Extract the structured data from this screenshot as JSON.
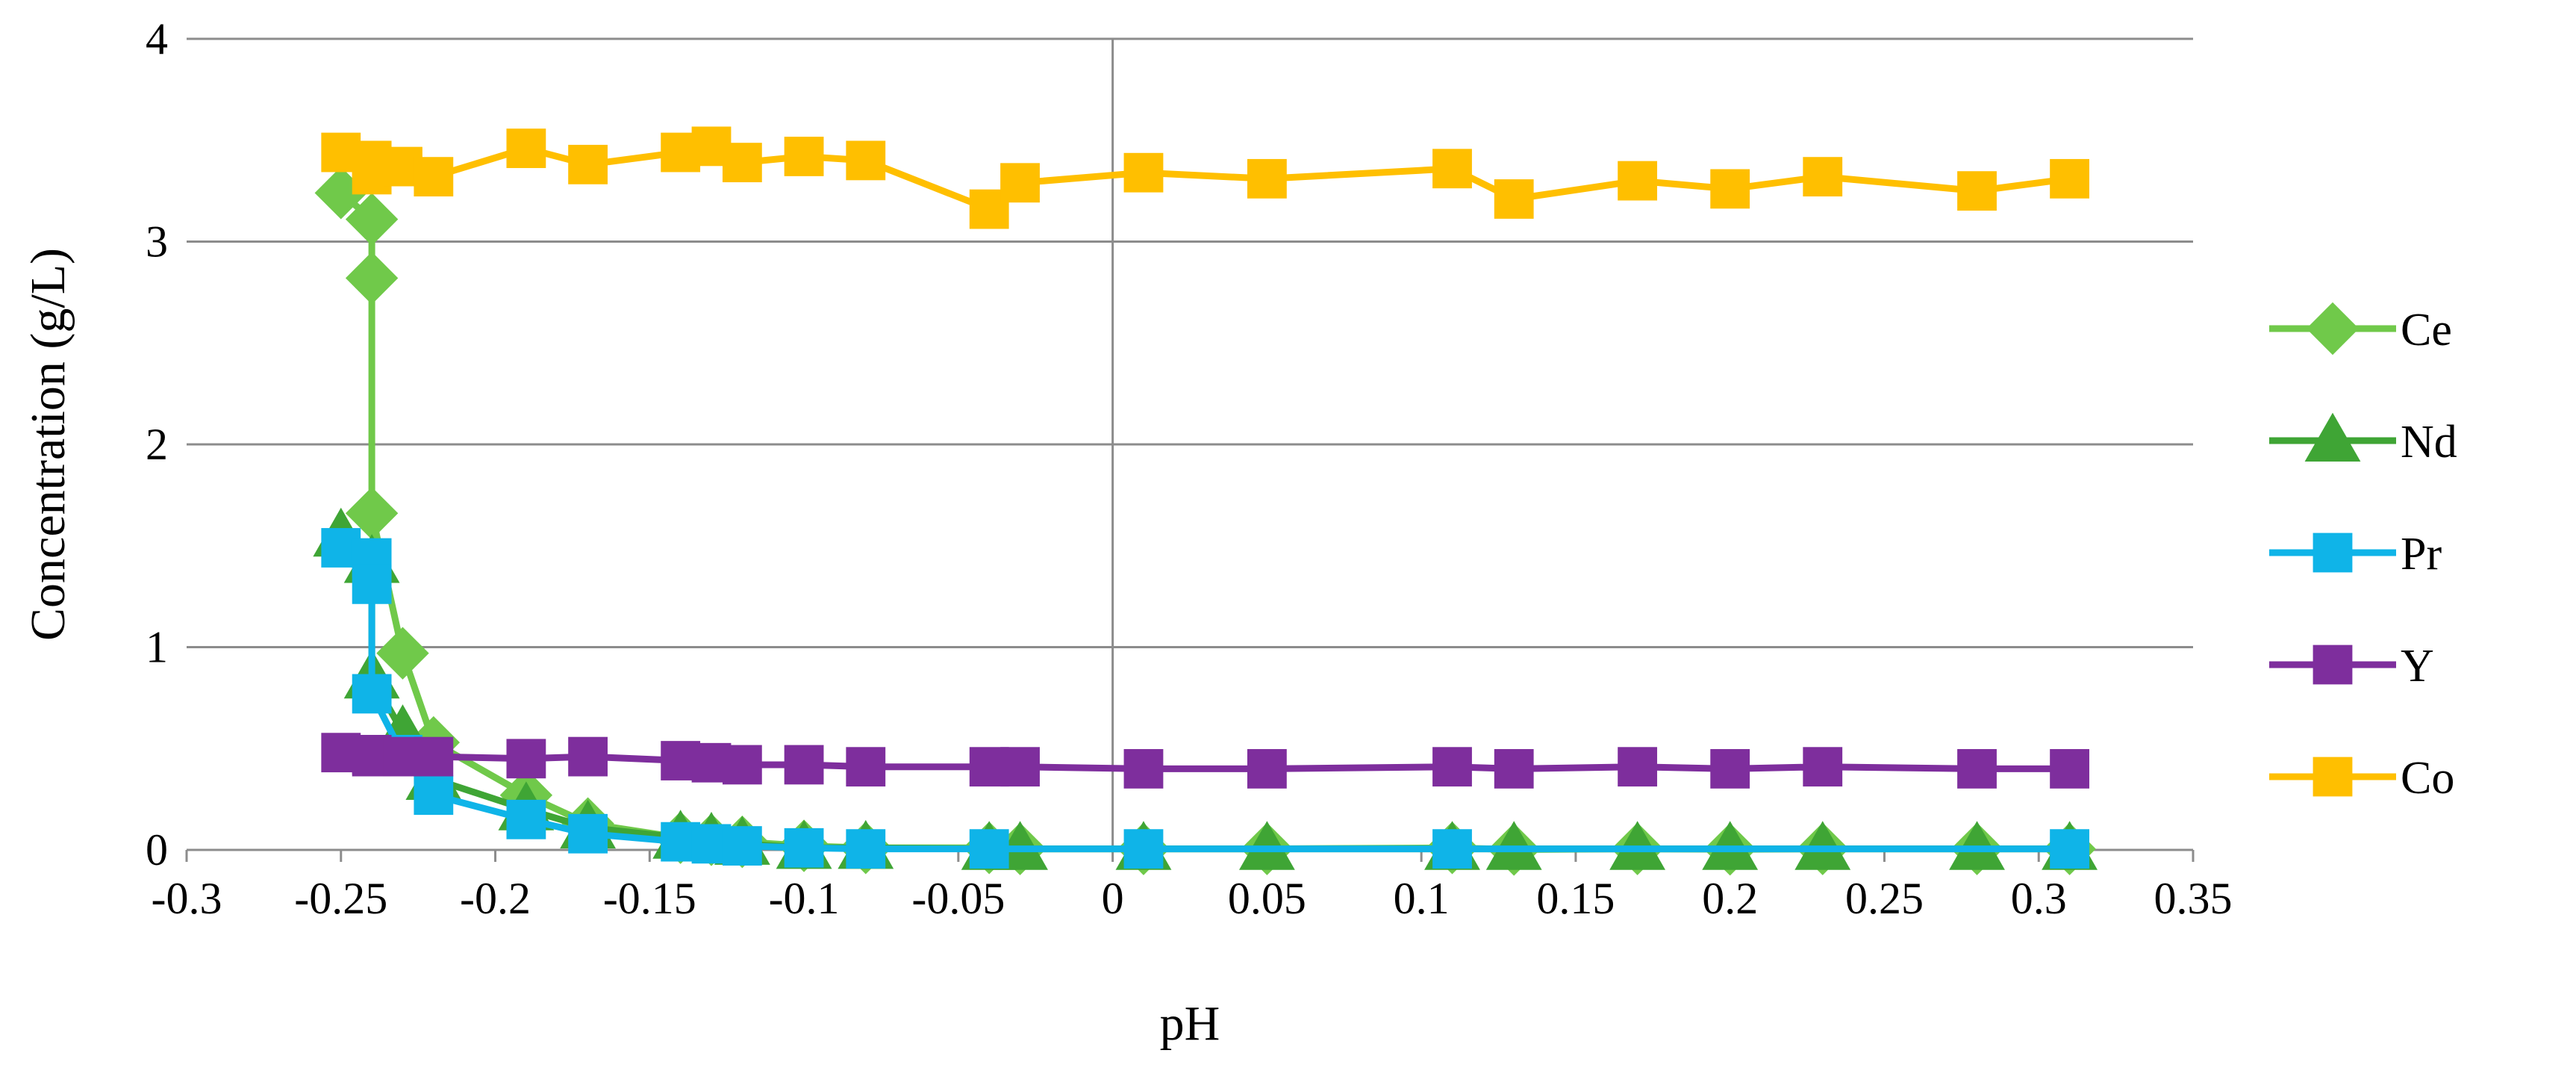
{
  "chart_data": {
    "type": "line",
    "title": "",
    "xlabel": "pH",
    "ylabel": "Concentration (g/L)",
    "xlim": [
      -0.3,
      0.35
    ],
    "ylim": [
      0,
      4
    ],
    "x_ticks": [
      "-0.3",
      "-0.25",
      "-0.2",
      "-0.15",
      "-0.1",
      "-0.05",
      "0",
      "0.05",
      "0.1",
      "0.15",
      "0.2",
      "0.25",
      "0.3",
      "0.35"
    ],
    "y_ticks": [
      "0",
      "1",
      "2",
      "3",
      "4"
    ],
    "grid": "horizontal",
    "legend_position": "right",
    "series": [
      {
        "name": "Ce",
        "color": "#70C94A",
        "marker": "diamond",
        "points": [
          [
            -0.25,
            3.24
          ],
          [
            -0.24,
            3.11
          ],
          [
            -0.24,
            2.82
          ],
          [
            -0.24,
            1.66
          ],
          [
            -0.23,
            0.97
          ],
          [
            -0.22,
            0.53
          ],
          [
            -0.19,
            0.27
          ],
          [
            -0.17,
            0.13
          ],
          [
            -0.14,
            0.06
          ],
          [
            -0.13,
            0.05
          ],
          [
            -0.12,
            0.04
          ],
          [
            -0.1,
            0.02
          ],
          [
            -0.08,
            0.01
          ],
          [
            -0.04,
            0.01
          ],
          [
            -0.03,
            0.005
          ],
          [
            0.01,
            0.005
          ],
          [
            0.05,
            0.005
          ],
          [
            0.11,
            0.01
          ],
          [
            0.13,
            0.002
          ],
          [
            0.17,
            0.005
          ],
          [
            0.2,
            0.003
          ],
          [
            0.23,
            0.005
          ],
          [
            0.28,
            0.005
          ],
          [
            0.31,
            0.005
          ]
        ]
      },
      {
        "name": "Nd",
        "color": "#3FA535",
        "marker": "triangle",
        "points": [
          [
            -0.25,
            1.55
          ],
          [
            -0.24,
            1.42
          ],
          [
            -0.24,
            0.85
          ],
          [
            -0.23,
            0.58
          ],
          [
            -0.22,
            0.35
          ],
          [
            -0.19,
            0.2
          ],
          [
            -0.17,
            0.11
          ],
          [
            -0.14,
            0.06
          ],
          [
            -0.13,
            0.05
          ],
          [
            -0.12,
            0.03
          ],
          [
            -0.1,
            0.01
          ],
          [
            -0.08,
            0.01
          ],
          [
            -0.04,
            0.005
          ],
          [
            -0.03,
            0.005
          ],
          [
            0.01,
            0.005
          ],
          [
            0.05,
            0.005
          ],
          [
            0.11,
            0.005
          ],
          [
            0.13,
            0.005
          ],
          [
            0.17,
            0.005
          ],
          [
            0.2,
            0.005
          ],
          [
            0.23,
            0.005
          ],
          [
            0.28,
            0.005
          ],
          [
            0.31,
            0.005
          ]
        ]
      },
      {
        "name": "Pr",
        "color": "#0FB4E8",
        "marker": "square",
        "points": [
          [
            -0.25,
            1.49
          ],
          [
            -0.24,
            1.44
          ],
          [
            -0.24,
            1.31
          ],
          [
            -0.24,
            0.77
          ],
          [
            -0.23,
            0.47
          ],
          [
            -0.22,
            0.27
          ],
          [
            -0.19,
            0.15
          ],
          [
            -0.17,
            0.08
          ],
          [
            -0.14,
            0.04
          ],
          [
            -0.13,
            0.03
          ],
          [
            -0.12,
            0.02
          ],
          [
            -0.1,
            0.01
          ],
          [
            -0.08,
            0.005
          ],
          [
            -0.04,
            0.005
          ],
          [
            0.01,
            0.005
          ],
          [
            0.11,
            0.005
          ],
          [
            0.31,
            0.005
          ]
        ]
      },
      {
        "name": "Y",
        "color": "#7E2E9D",
        "marker": "square",
        "points": [
          [
            -0.25,
            0.48
          ],
          [
            -0.24,
            0.47
          ],
          [
            -0.24,
            0.46
          ],
          [
            -0.23,
            0.46
          ],
          [
            -0.22,
            0.46
          ],
          [
            -0.19,
            0.45
          ],
          [
            -0.17,
            0.46
          ],
          [
            -0.14,
            0.44
          ],
          [
            -0.13,
            0.43
          ],
          [
            -0.12,
            0.42
          ],
          [
            -0.1,
            0.42
          ],
          [
            -0.08,
            0.41
          ],
          [
            -0.04,
            0.41
          ],
          [
            -0.03,
            0.41
          ],
          [
            0.01,
            0.4
          ],
          [
            0.05,
            0.4
          ],
          [
            0.11,
            0.41
          ],
          [
            0.13,
            0.4
          ],
          [
            0.17,
            0.41
          ],
          [
            0.2,
            0.4
          ],
          [
            0.23,
            0.41
          ],
          [
            0.28,
            0.4
          ],
          [
            0.31,
            0.4
          ]
        ]
      },
      {
        "name": "Co",
        "color": "#FFBF00",
        "marker": "square",
        "points": [
          [
            -0.25,
            3.44
          ],
          [
            -0.24,
            3.4
          ],
          [
            -0.24,
            3.33
          ],
          [
            -0.23,
            3.37
          ],
          [
            -0.22,
            3.32
          ],
          [
            -0.19,
            3.46
          ],
          [
            -0.17,
            3.38
          ],
          [
            -0.14,
            3.44
          ],
          [
            -0.13,
            3.47
          ],
          [
            -0.12,
            3.39
          ],
          [
            -0.1,
            3.42
          ],
          [
            -0.08,
            3.4
          ],
          [
            -0.04,
            3.16
          ],
          [
            -0.03,
            3.29
          ],
          [
            0.01,
            3.34
          ],
          [
            0.05,
            3.31
          ],
          [
            0.11,
            3.36
          ],
          [
            0.13,
            3.21
          ],
          [
            0.17,
            3.3
          ],
          [
            0.2,
            3.26
          ],
          [
            0.23,
            3.32
          ],
          [
            0.28,
            3.25
          ],
          [
            0.31,
            3.31
          ]
        ]
      }
    ]
  }
}
